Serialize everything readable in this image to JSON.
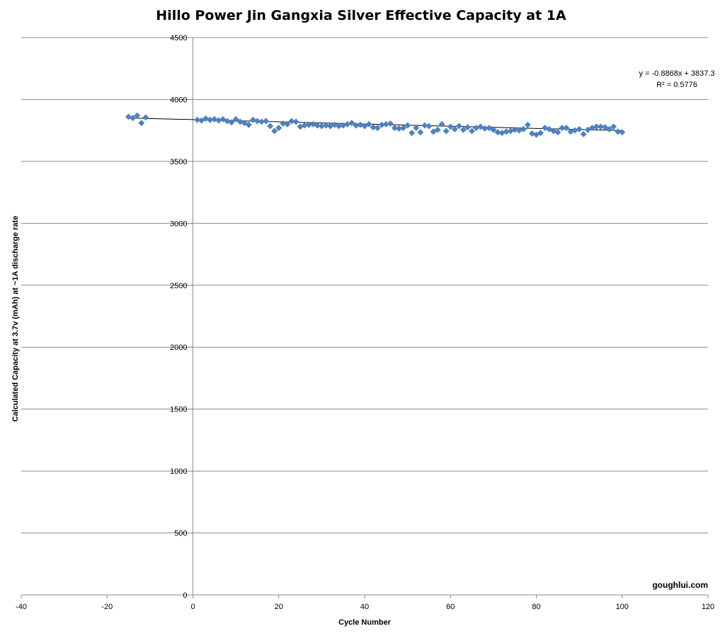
{
  "chart_data": {
    "type": "scatter",
    "title": "Hillo Power Jin Gangxia Silver Effective Capacity at 1A",
    "xlabel": "Cycle Number",
    "ylabel": "Calculated Capacity at 3.7v (mAh) at ~1A discharge rate",
    "xlim": [
      -40,
      120
    ],
    "ylim": [
      0,
      4500
    ],
    "x_ticks": [
      -40,
      -20,
      0,
      20,
      40,
      60,
      80,
      100,
      120
    ],
    "y_ticks": [
      0,
      500,
      1000,
      1500,
      2000,
      2500,
      3000,
      3500,
      4000,
      4500
    ],
    "grid": "horizontal",
    "marker_color": "#4f81bd",
    "trendline": {
      "slope": -0.8868,
      "intercept": 3837.3,
      "equation_label": "y = -0.8868x + 3837.3",
      "r2_label": "R² = 0.5776"
    },
    "series": [
      {
        "x": [
          -15,
          -14,
          -13,
          -12,
          -11,
          1,
          2,
          3,
          4,
          5,
          6,
          7,
          8,
          9,
          10,
          11,
          12,
          13,
          14,
          15,
          16,
          17,
          18,
          19,
          20,
          21,
          22,
          23,
          24,
          25,
          26,
          27,
          28,
          29,
          30,
          31,
          32,
          33,
          34,
          35,
          36,
          37,
          38,
          39,
          40,
          41,
          42,
          43,
          44,
          45,
          46,
          47,
          48,
          49,
          50,
          51,
          52,
          53,
          54,
          55,
          56,
          57,
          58,
          59,
          60,
          61,
          62,
          63,
          64,
          65,
          66,
          67,
          68,
          69,
          70,
          71,
          72,
          73,
          74,
          75,
          76,
          77,
          78,
          79,
          80,
          81,
          82,
          83,
          84,
          85,
          86,
          87,
          88,
          89,
          90,
          91,
          92,
          93,
          94,
          95,
          96,
          97,
          98,
          99,
          100
        ],
        "values": [
          3860,
          3850,
          3870,
          3810,
          3855,
          3835,
          3830,
          3845,
          3835,
          3840,
          3830,
          3840,
          3825,
          3815,
          3840,
          3820,
          3810,
          3795,
          3835,
          3825,
          3820,
          3825,
          3785,
          3745,
          3770,
          3805,
          3800,
          3825,
          3820,
          3780,
          3790,
          3795,
          3800,
          3790,
          3785,
          3790,
          3785,
          3795,
          3785,
          3790,
          3800,
          3810,
          3790,
          3795,
          3785,
          3800,
          3775,
          3770,
          3795,
          3800,
          3805,
          3770,
          3765,
          3770,
          3790,
          3730,
          3770,
          3735,
          3790,
          3785,
          3740,
          3755,
          3800,
          3745,
          3780,
          3760,
          3785,
          3755,
          3775,
          3745,
          3770,
          3780,
          3765,
          3770,
          3755,
          3735,
          3730,
          3740,
          3745,
          3755,
          3750,
          3760,
          3795,
          3725,
          3715,
          3730,
          3770,
          3760,
          3745,
          3735,
          3770,
          3770,
          3740,
          3750,
          3760,
          3720,
          3755,
          3770,
          3780,
          3780,
          3775,
          3760,
          3780,
          3740,
          3735
        ]
      }
    ]
  },
  "watermark": "goughlui.com"
}
